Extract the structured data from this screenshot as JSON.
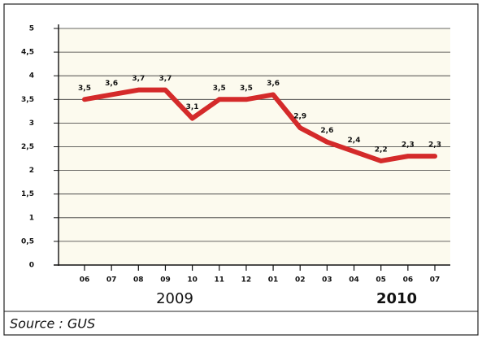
{
  "chart_data": {
    "type": "line",
    "categories": [
      "06",
      "07",
      "08",
      "09",
      "10",
      "11",
      "12",
      "01",
      "02",
      "03",
      "04",
      "05",
      "06",
      "07"
    ],
    "values": [
      3.5,
      3.6,
      3.7,
      3.7,
      3.1,
      3.5,
      3.5,
      3.6,
      2.9,
      2.6,
      2.4,
      2.2,
      2.3,
      2.3
    ],
    "value_labels": [
      "3,5",
      "3,6",
      "3,7",
      "3,7",
      "3,1",
      "3,5",
      "3,5",
      "3,6",
      "2,9",
      "2,6",
      "2,4",
      "2,2",
      "2,3",
      "2,3"
    ],
    "color": "#d42a2a",
    "ylim": [
      0,
      5
    ],
    "yticks": [
      0,
      {
        "value": 0.5,
        "label": "0,5"
      },
      1,
      {
        "value": 1.5,
        "label": "1,5"
      },
      2,
      {
        "value": 2.5,
        "label": "2,5"
      },
      3,
      {
        "value": 3.5,
        "label": "3,5"
      },
      4,
      {
        "value": 4.5,
        "label": "4,5"
      },
      5
    ],
    "grid": true,
    "year_labels": [
      "2009",
      "2010"
    ],
    "source": "Source : GUS"
  }
}
